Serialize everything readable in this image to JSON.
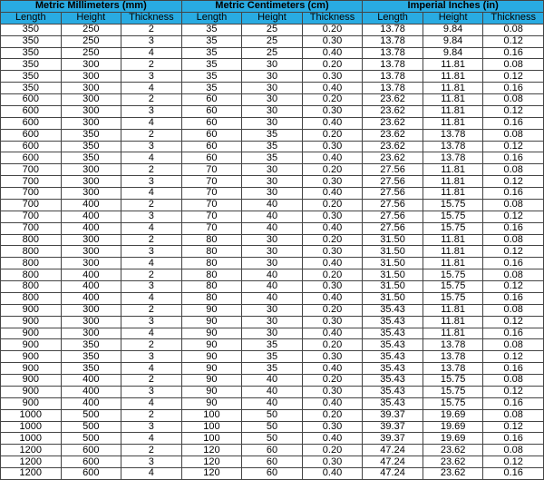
{
  "groups": [
    "Metric Millimeters (mm)",
    "Metric Centimeters (cm)",
    "Imperial Inches (in)"
  ],
  "columns": [
    "Length",
    "Height",
    "Thickness",
    "Length",
    "Height",
    "Thickness",
    "Length",
    "Height",
    "Thickness"
  ],
  "colors": {
    "header_bg": "#29abe2",
    "border": "#444444"
  },
  "rows": [
    [
      "350",
      "250",
      "2",
      "35",
      "25",
      "0.20",
      "13.78",
      "9.84",
      "0.08"
    ],
    [
      "350",
      "250",
      "3",
      "35",
      "25",
      "0.30",
      "13.78",
      "9.84",
      "0.12"
    ],
    [
      "350",
      "250",
      "4",
      "35",
      "25",
      "0.40",
      "13.78",
      "9.84",
      "0.16"
    ],
    [
      "350",
      "300",
      "2",
      "35",
      "30",
      "0.20",
      "13.78",
      "11.81",
      "0.08"
    ],
    [
      "350",
      "300",
      "3",
      "35",
      "30",
      "0.30",
      "13.78",
      "11.81",
      "0.12"
    ],
    [
      "350",
      "300",
      "4",
      "35",
      "30",
      "0.40",
      "13.78",
      "11.81",
      "0.16"
    ],
    [
      "600",
      "300",
      "2",
      "60",
      "30",
      "0.20",
      "23.62",
      "11.81",
      "0.08"
    ],
    [
      "600",
      "300",
      "3",
      "60",
      "30",
      "0.30",
      "23.62",
      "11.81",
      "0.12"
    ],
    [
      "600",
      "300",
      "4",
      "60",
      "30",
      "0.40",
      "23.62",
      "11.81",
      "0.16"
    ],
    [
      "600",
      "350",
      "2",
      "60",
      "35",
      "0.20",
      "23.62",
      "13.78",
      "0.08"
    ],
    [
      "600",
      "350",
      "3",
      "60",
      "35",
      "0.30",
      "23.62",
      "13.78",
      "0.12"
    ],
    [
      "600",
      "350",
      "4",
      "60",
      "35",
      "0.40",
      "23.62",
      "13.78",
      "0.16"
    ],
    [
      "700",
      "300",
      "2",
      "70",
      "30",
      "0.20",
      "27.56",
      "11.81",
      "0.08"
    ],
    [
      "700",
      "300",
      "3",
      "70",
      "30",
      "0.30",
      "27.56",
      "11.81",
      "0.12"
    ],
    [
      "700",
      "300",
      "4",
      "70",
      "30",
      "0.40",
      "27.56",
      "11.81",
      "0.16"
    ],
    [
      "700",
      "400",
      "2",
      "70",
      "40",
      "0.20",
      "27.56",
      "15.75",
      "0.08"
    ],
    [
      "700",
      "400",
      "3",
      "70",
      "40",
      "0.30",
      "27.56",
      "15.75",
      "0.12"
    ],
    [
      "700",
      "400",
      "4",
      "70",
      "40",
      "0.40",
      "27.56",
      "15.75",
      "0.16"
    ],
    [
      "800",
      "300",
      "2",
      "80",
      "30",
      "0.20",
      "31.50",
      "11.81",
      "0.08"
    ],
    [
      "800",
      "300",
      "3",
      "80",
      "30",
      "0.30",
      "31.50",
      "11.81",
      "0.12"
    ],
    [
      "800",
      "300",
      "4",
      "80",
      "30",
      "0.40",
      "31.50",
      "11.81",
      "0.16"
    ],
    [
      "800",
      "400",
      "2",
      "80",
      "40",
      "0.20",
      "31.50",
      "15.75",
      "0.08"
    ],
    [
      "800",
      "400",
      "3",
      "80",
      "40",
      "0.30",
      "31.50",
      "15.75",
      "0.12"
    ],
    [
      "800",
      "400",
      "4",
      "80",
      "40",
      "0.40",
      "31.50",
      "15.75",
      "0.16"
    ],
    [
      "900",
      "300",
      "2",
      "90",
      "30",
      "0.20",
      "35.43",
      "11.81",
      "0.08"
    ],
    [
      "900",
      "300",
      "3",
      "90",
      "30",
      "0.30",
      "35.43",
      "11.81",
      "0.12"
    ],
    [
      "900",
      "300",
      "4",
      "90",
      "30",
      "0.40",
      "35.43",
      "11.81",
      "0.16"
    ],
    [
      "900",
      "350",
      "2",
      "90",
      "35",
      "0.20",
      "35.43",
      "13.78",
      "0.08"
    ],
    [
      "900",
      "350",
      "3",
      "90",
      "35",
      "0.30",
      "35.43",
      "13.78",
      "0.12"
    ],
    [
      "900",
      "350",
      "4",
      "90",
      "35",
      "0.40",
      "35.43",
      "13.78",
      "0.16"
    ],
    [
      "900",
      "400",
      "2",
      "90",
      "40",
      "0.20",
      "35.43",
      "15.75",
      "0.08"
    ],
    [
      "900",
      "400",
      "3",
      "90",
      "40",
      "0.30",
      "35.43",
      "15.75",
      "0.12"
    ],
    [
      "900",
      "400",
      "4",
      "90",
      "40",
      "0.40",
      "35.43",
      "15.75",
      "0.16"
    ],
    [
      "1000",
      "500",
      "2",
      "100",
      "50",
      "0.20",
      "39.37",
      "19.69",
      "0.08"
    ],
    [
      "1000",
      "500",
      "3",
      "100",
      "50",
      "0.30",
      "39.37",
      "19.69",
      "0.12"
    ],
    [
      "1000",
      "500",
      "4",
      "100",
      "50",
      "0.40",
      "39.37",
      "19.69",
      "0.16"
    ],
    [
      "1200",
      "600",
      "2",
      "120",
      "60",
      "0.20",
      "47.24",
      "23.62",
      "0.08"
    ],
    [
      "1200",
      "600",
      "3",
      "120",
      "60",
      "0.30",
      "47.24",
      "23.62",
      "0.12"
    ],
    [
      "1200",
      "600",
      "4",
      "120",
      "60",
      "0.40",
      "47.24",
      "23.62",
      "0.16"
    ]
  ]
}
